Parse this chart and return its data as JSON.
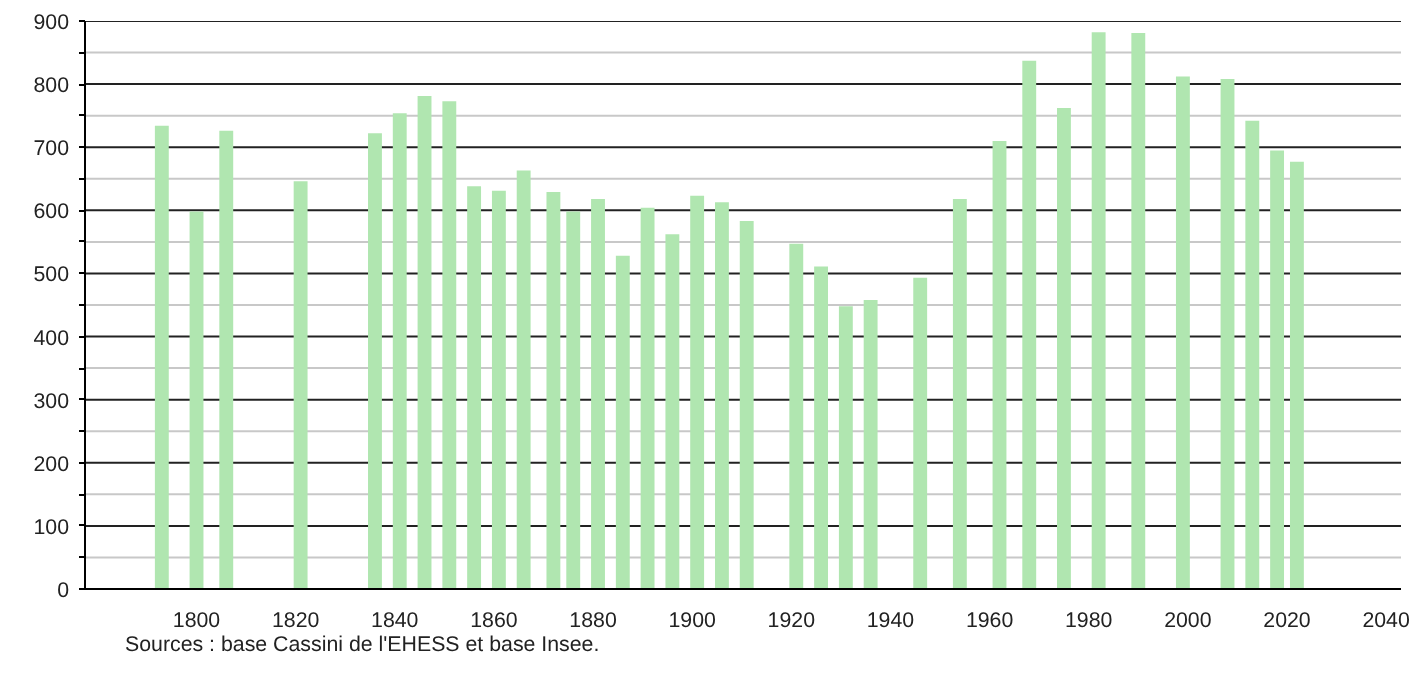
{
  "chart_data": {
    "type": "bar",
    "x": [
      1793,
      1800,
      1806,
      1821,
      1836,
      1841,
      1846,
      1851,
      1856,
      1861,
      1866,
      1872,
      1876,
      1881,
      1886,
      1891,
      1896,
      1901,
      1906,
      1911,
      1921,
      1926,
      1931,
      1936,
      1946,
      1954,
      1962,
      1968,
      1975,
      1982,
      1990,
      1999,
      2008,
      2013,
      2018,
      2022
    ],
    "values": [
      734,
      598,
      726,
      646,
      722,
      754,
      781,
      773,
      638,
      631,
      663,
      629,
      598,
      618,
      528,
      604,
      562,
      623,
      613,
      583,
      547,
      511,
      448,
      458,
      493,
      618,
      710,
      837,
      762,
      882,
      881,
      812,
      808,
      742,
      695,
      677
    ],
    "color": "#b0e6b0",
    "xlim": [
      1777.5,
      2043
    ],
    "xticks": [
      1800,
      1820,
      1840,
      1860,
      1880,
      1900,
      1920,
      1940,
      1960,
      1980,
      2000,
      2020,
      2040
    ],
    "ylim": [
      0,
      900
    ],
    "yticks": [
      0,
      {
        "value": 50,
        "label": null
      },
      100,
      {
        "value": 150,
        "label": null
      },
      200,
      {
        "value": 250,
        "label": null
      },
      300,
      {
        "value": 350,
        "label": null
      },
      400,
      {
        "value": 450,
        "label": null
      },
      500,
      {
        "value": 550,
        "label": null
      },
      600,
      {
        "value": 650,
        "label": null
      },
      700,
      {
        "value": 750,
        "label": null
      },
      800,
      {
        "value": 850,
        "label": null
      },
      900
    ],
    "grid": "y",
    "annotations": [
      "Sources : base Cassini de l'EHESS et base Insee."
    ]
  }
}
